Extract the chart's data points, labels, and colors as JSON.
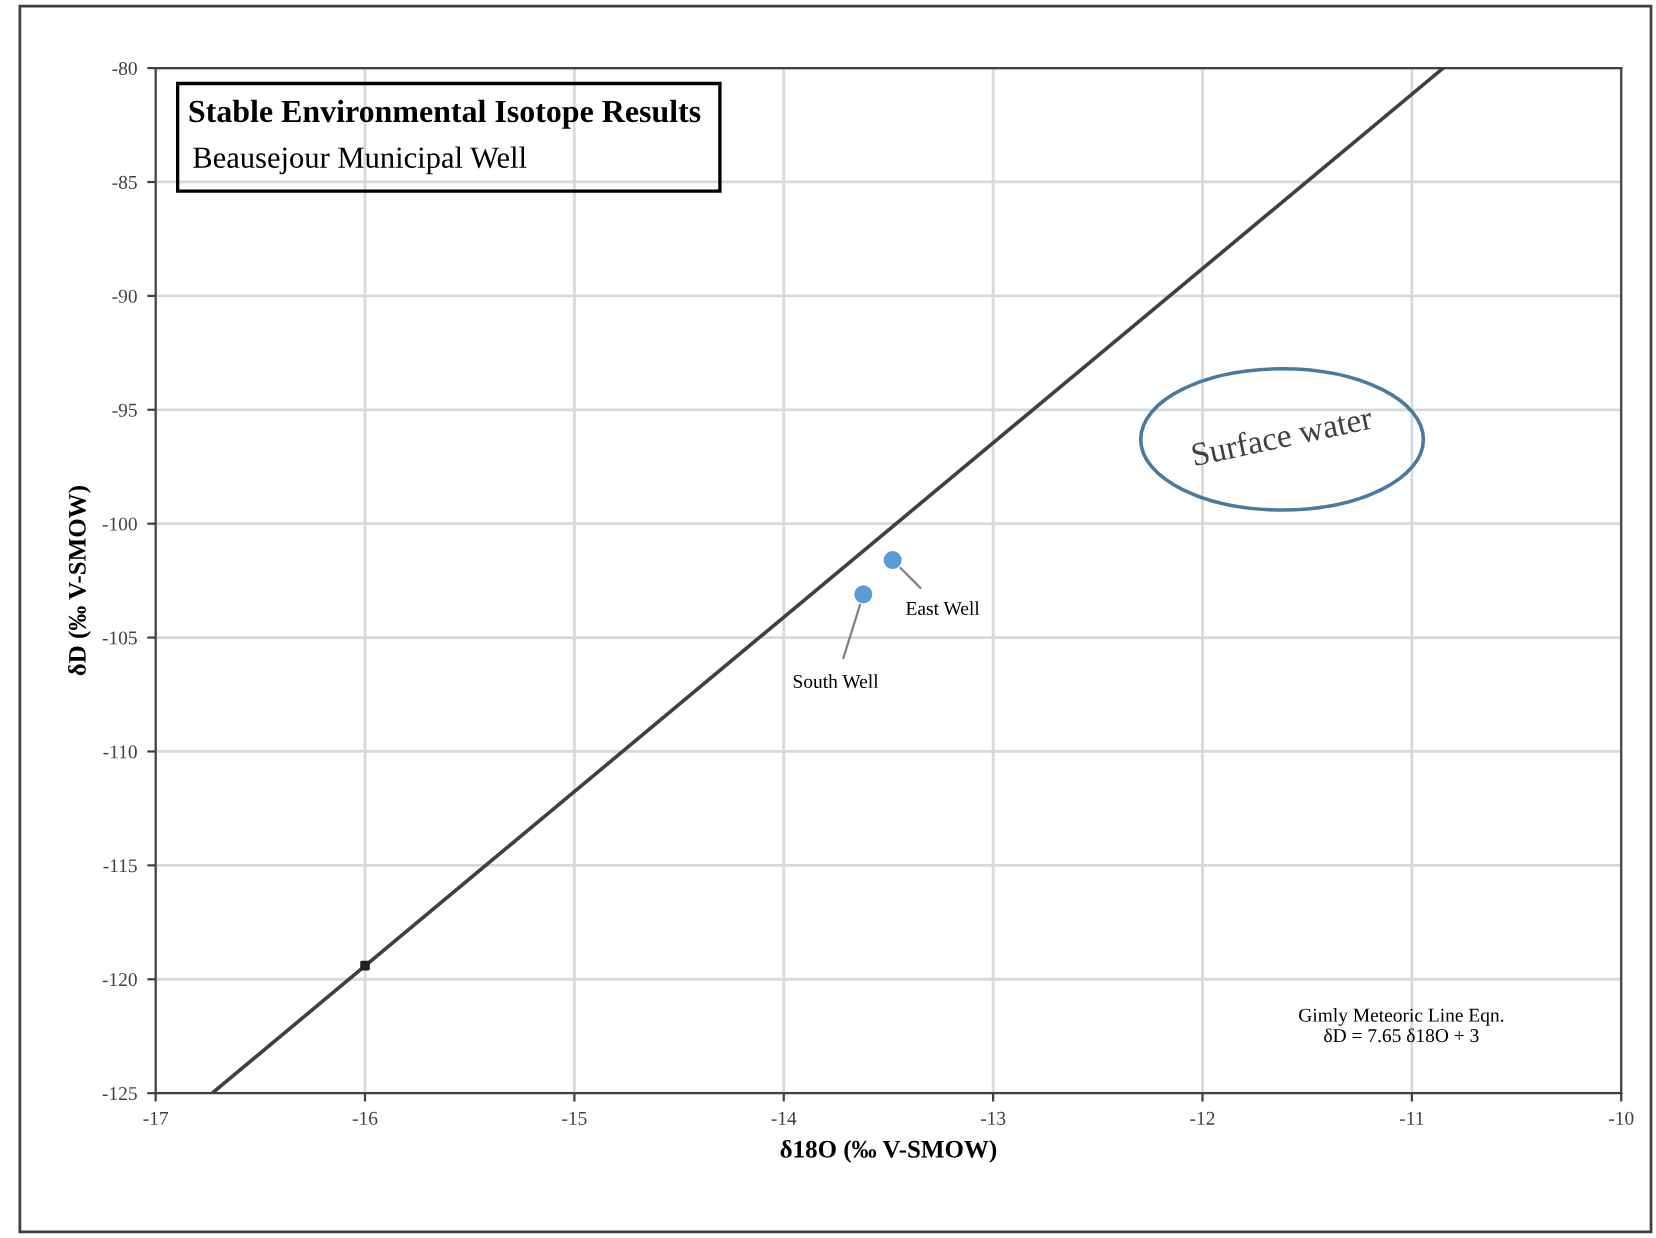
{
  "chart_data": {
    "type": "scatter",
    "title": "Stable Environmental Isotope Results",
    "subtitle": "Beausejour Municipal Well",
    "xlabel": "δ18O (‰ V-SMOW)",
    "ylabel": "δD (‰ V-SMOW)",
    "series": [
      {
        "type": "line",
        "color": "#404040",
        "x": [
          -16.73,
          -10.85
        ],
        "values": [
          -125,
          -80
        ],
        "marker": "none",
        "line_style": "solid"
      },
      {
        "color": "#202020",
        "x": [
          -16
        ],
        "values": [
          -119.4
        ],
        "marker": "square"
      },
      {
        "color": "#5b9bd5",
        "x": [
          -13.62,
          -13.48
        ],
        "values": [
          -103.1,
          -101.6
        ],
        "marker": "circle"
      }
    ],
    "xlim": [
      -17,
      -10
    ],
    "ylim": [
      -125,
      -80
    ],
    "xticks": [
      -17,
      -16,
      -15,
      -14,
      -13,
      -12,
      -11,
      -10
    ],
    "yticks": [
      -125,
      -120,
      -115,
      -110,
      -105,
      -100,
      -95,
      -90,
      -85,
      -80
    ],
    "grid": true,
    "legend": false,
    "annotations": [
      {
        "text": "South Well",
        "x": -13.62,
        "y": -103.1
      },
      {
        "text": "East Well",
        "x": -13.48,
        "y": -101.6
      },
      "Surface water",
      "Gimly Meteoric Line Eqn.\nδD = 7.65 δ18O + 3"
    ]
  }
}
